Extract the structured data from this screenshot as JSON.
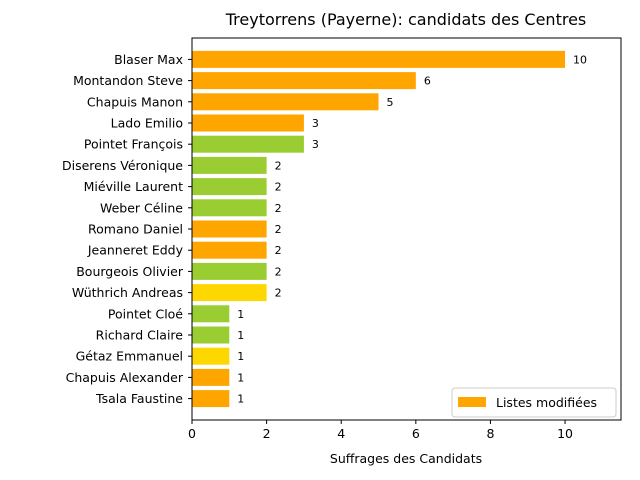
{
  "chart_data": {
    "type": "bar",
    "orientation": "horizontal",
    "title": "Treytorrens (Payerne): candidats des Centres",
    "xlabel": "Suffrages des Candidats",
    "ylabel": "",
    "xlim": [
      0,
      11.5
    ],
    "xticks": [
      "0",
      "2",
      "4",
      "6",
      "8",
      "10"
    ],
    "categories": [
      "Blaser Max",
      "Montandon Steve",
      "Chapuis Manon",
      "Lado Emilio",
      "Pointet François",
      "Diserens Véronique",
      "Miéville Laurent",
      "Weber Céline",
      "Romano Daniel",
      "Jeanneret Eddy",
      "Bourgeois Olivier",
      "Wüthrich Andreas",
      "Pointet Cloé",
      "Richard Claire",
      "Gétaz Emmanuel",
      "Chapuis Alexander",
      "Tsala Faustine"
    ],
    "values": [
      10,
      6,
      5,
      3,
      3,
      2,
      2,
      2,
      2,
      2,
      2,
      2,
      1,
      1,
      1,
      1,
      1
    ],
    "value_labels": [
      "10",
      "6",
      "5",
      "3",
      "3",
      "2",
      "2",
      "2",
      "2",
      "2",
      "2",
      "2",
      "1",
      "1",
      "1",
      "1",
      "1"
    ],
    "bar_colors": [
      "#FFA500",
      "#FFA500",
      "#FFA500",
      "#FFA500",
      "#9ACD32",
      "#9ACD32",
      "#9ACD32",
      "#9ACD32",
      "#FFA500",
      "#FFA500",
      "#9ACD32",
      "#FFD700",
      "#9ACD32",
      "#9ACD32",
      "#FFD700",
      "#FFA500",
      "#FFA500"
    ],
    "legend": {
      "position": "lower-right",
      "entries": [
        {
          "label": "Listes modifiées",
          "color": "#FFA500"
        }
      ]
    },
    "grid": false
  }
}
